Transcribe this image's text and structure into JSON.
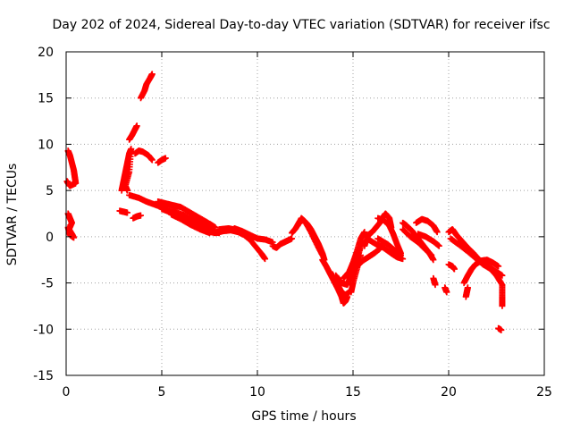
{
  "chart_data": {
    "type": "scatter",
    "title": "Day 202 of 2024, Sidereal Day-to-day VTEC variation (SDTVAR) for receiver ifsc",
    "xlabel": "GPS time / hours",
    "ylabel": "SDTVAR / TECUs",
    "xlim": [
      0,
      25
    ],
    "ylim": [
      -15,
      20
    ],
    "xticks": [
      0,
      5,
      10,
      15,
      20,
      25
    ],
    "yticks": [
      -15,
      -10,
      -5,
      0,
      5,
      10,
      15,
      20
    ],
    "grid": true,
    "marker": "+",
    "series": [
      {
        "name": "SDTVAR",
        "color": "#ff0000",
        "tracks": [
          [
            [
              0.1,
              9.3
            ],
            [
              0.2,
              8.8
            ],
            [
              0.3,
              8.0
            ],
            [
              0.4,
              7.2
            ],
            [
              0.45,
              6.5
            ],
            [
              0.5,
              5.8
            ],
            [
              0.4,
              5.7
            ],
            [
              0.2,
              5.5
            ],
            [
              0.1,
              5.8
            ],
            [
              0.05,
              6.0
            ]
          ],
          [
            [
              0.1,
              2.5
            ],
            [
              0.2,
              2.0
            ],
            [
              0.3,
              1.5
            ],
            [
              0.15,
              0.8
            ],
            [
              0.3,
              0.3
            ],
            [
              0.4,
              -0.1
            ],
            [
              0.2,
              0.2
            ],
            [
              0.1,
              1.0
            ]
          ],
          [
            [
              2.9,
              5.0
            ],
            [
              3.0,
              6.0
            ],
            [
              3.1,
              7.0
            ],
            [
              3.2,
              8.0
            ],
            [
              3.3,
              9.0
            ],
            [
              3.4,
              9.5
            ],
            [
              3.3,
              7.0
            ],
            [
              3.1,
              5.5
            ],
            [
              3.2,
              5.0
            ]
          ],
          [
            [
              3.3,
              10.5
            ],
            [
              3.45,
              11.0
            ],
            [
              3.6,
              11.6
            ],
            [
              3.7,
              12.0
            ]
          ],
          [
            [
              3.9,
              15.0
            ],
            [
              4.1,
              15.8
            ],
            [
              4.2,
              16.5
            ],
            [
              4.4,
              17.2
            ],
            [
              4.5,
              17.6
            ]
          ],
          [
            [
              3.6,
              9.0
            ],
            [
              3.8,
              9.3
            ],
            [
              4.0,
              9.2
            ],
            [
              4.3,
              8.8
            ],
            [
              4.5,
              8.3
            ]
          ],
          [
            [
              4.8,
              8.0
            ],
            [
              5.0,
              8.3
            ],
            [
              5.2,
              8.5
            ]
          ],
          [
            [
              2.8,
              2.8
            ],
            [
              3.0,
              2.7
            ],
            [
              3.2,
              2.6
            ]
          ],
          [
            [
              3.5,
              2.0
            ],
            [
              3.7,
              2.2
            ],
            [
              3.9,
              2.3
            ]
          ],
          [
            [
              3.3,
              4.5
            ],
            [
              3.8,
              4.2
            ],
            [
              4.2,
              3.8
            ],
            [
              4.6,
              3.5
            ],
            [
              5.0,
              3.2
            ],
            [
              5.6,
              2.8
            ],
            [
              6.2,
              2.3
            ],
            [
              6.8,
              1.8
            ],
            [
              7.3,
              1.2
            ],
            [
              7.5,
              0.8
            ]
          ],
          [
            [
              4.8,
              3.8
            ],
            [
              5.2,
              3.6
            ],
            [
              5.6,
              3.4
            ],
            [
              6.0,
              3.2
            ],
            [
              6.5,
              2.6
            ],
            [
              7.0,
              2.0
            ],
            [
              7.5,
              1.4
            ],
            [
              7.8,
              1.0
            ]
          ],
          [
            [
              5.0,
              3.0
            ],
            [
              5.5,
              2.6
            ],
            [
              6.0,
              2.0
            ],
            [
              6.5,
              1.6
            ],
            [
              7.0,
              1.1
            ],
            [
              7.5,
              0.6
            ],
            [
              8.0,
              0.4
            ]
          ],
          [
            [
              5.5,
              2.4
            ],
            [
              6.0,
              1.9
            ],
            [
              6.5,
              1.3
            ],
            [
              7.0,
              0.8
            ],
            [
              7.5,
              0.4
            ]
          ],
          [
            [
              7.3,
              0.6
            ],
            [
              7.8,
              0.4
            ],
            [
              8.2,
              0.6
            ],
            [
              8.6,
              0.7
            ],
            [
              9.0,
              0.5
            ],
            [
              9.3,
              0.2
            ],
            [
              9.6,
              -0.3
            ]
          ],
          [
            [
              8.0,
              0.8
            ],
            [
              8.5,
              0.9
            ],
            [
              9.0,
              0.7
            ],
            [
              9.4,
              0.3
            ],
            [
              9.8,
              -0.8
            ],
            [
              10.2,
              -1.8
            ],
            [
              10.4,
              -2.4
            ]
          ],
          [
            [
              8.8,
              0.9
            ],
            [
              9.2,
              0.6
            ],
            [
              9.6,
              0.2
            ],
            [
              10.0,
              -0.2
            ],
            [
              10.4,
              -0.3
            ],
            [
              10.8,
              -0.6
            ]
          ],
          [
            [
              10.8,
              -1.0
            ],
            [
              11.0,
              -1.2
            ],
            [
              11.2,
              -0.8
            ],
            [
              11.4,
              -0.6
            ],
            [
              11.6,
              -0.4
            ],
            [
              11.8,
              -0.2
            ]
          ],
          [
            [
              11.8,
              0.4
            ],
            [
              12.0,
              0.9
            ],
            [
              12.2,
              1.6
            ],
            [
              12.4,
              1.8
            ],
            [
              12.6,
              1.4
            ],
            [
              12.8,
              0.8
            ],
            [
              13.0,
              0.0
            ],
            [
              13.2,
              -0.8
            ],
            [
              13.4,
              -1.8
            ],
            [
              13.5,
              -2.5
            ]
          ],
          [
            [
              12.1,
              1.2
            ],
            [
              12.3,
              2.0
            ],
            [
              12.5,
              1.6
            ],
            [
              12.8,
              0.5
            ],
            [
              13.1,
              -0.8
            ],
            [
              13.4,
              -2.0
            ]
          ],
          [
            [
              13.4,
              -2.5
            ],
            [
              13.6,
              -3.2
            ],
            [
              13.8,
              -4.0
            ],
            [
              14.0,
              -4.8
            ],
            [
              14.2,
              -5.6
            ],
            [
              14.4,
              -6.5
            ],
            [
              14.5,
              -7.2
            ],
            [
              14.6,
              -7.0
            ],
            [
              14.7,
              -6.5
            ]
          ],
          [
            [
              13.8,
              -3.8
            ],
            [
              14.0,
              -4.5
            ],
            [
              14.2,
              -5.2
            ],
            [
              14.4,
              -6.0
            ],
            [
              14.6,
              -6.3
            ],
            [
              14.8,
              -6.0
            ]
          ],
          [
            [
              14.1,
              -4.2
            ],
            [
              14.4,
              -5.0
            ],
            [
              14.7,
              -5.2
            ],
            [
              14.9,
              -4.2
            ],
            [
              15.1,
              -3.2
            ],
            [
              15.3,
              -1.8
            ],
            [
              15.5,
              -0.4
            ]
          ],
          [
            [
              14.5,
              -4.5
            ],
            [
              14.8,
              -3.8
            ],
            [
              15.0,
              -2.8
            ],
            [
              15.2,
              -1.6
            ],
            [
              15.4,
              -0.2
            ],
            [
              15.6,
              0.5
            ]
          ],
          [
            [
              14.9,
              -6.0
            ],
            [
              15.0,
              -5.0
            ],
            [
              15.2,
              -3.5
            ],
            [
              15.4,
              -2.0
            ]
          ],
          [
            [
              15.3,
              -3.0
            ],
            [
              15.5,
              -2.6
            ],
            [
              15.8,
              -2.2
            ],
            [
              16.1,
              -1.8
            ],
            [
              16.4,
              -1.3
            ]
          ],
          [
            [
              15.6,
              -1.0
            ],
            [
              15.8,
              0.2
            ],
            [
              16.0,
              0.5
            ],
            [
              16.2,
              1.0
            ],
            [
              16.4,
              1.5
            ],
            [
              16.6,
              2.2
            ],
            [
              16.7,
              2.5
            ],
            [
              16.9,
              2.0
            ],
            [
              17.0,
              1.0
            ]
          ],
          [
            [
              15.8,
              -0.3
            ],
            [
              16.2,
              -0.8
            ],
            [
              16.6,
              -1.2
            ],
            [
              17.0,
              -1.8
            ],
            [
              17.3,
              -2.2
            ],
            [
              17.6,
              -2.4
            ]
          ],
          [
            [
              16.3,
              -0.2
            ],
            [
              16.8,
              -0.8
            ],
            [
              17.2,
              -1.5
            ],
            [
              17.5,
              -2.0
            ]
          ],
          [
            [
              16.3,
              2.0
            ],
            [
              16.6,
              1.8
            ],
            [
              16.9,
              1.2
            ],
            [
              17.1,
              0.3
            ],
            [
              17.3,
              -0.8
            ],
            [
              17.5,
              -1.8
            ]
          ],
          [
            [
              17.6,
              1.5
            ],
            [
              17.8,
              1.2
            ],
            [
              18.1,
              0.6
            ],
            [
              18.4,
              -0.2
            ],
            [
              18.7,
              -1.0
            ],
            [
              19.0,
              -1.8
            ],
            [
              19.2,
              -2.5
            ]
          ],
          [
            [
              17.6,
              0.8
            ],
            [
              18.0,
              0.0
            ],
            [
              18.4,
              -0.6
            ],
            [
              18.8,
              -1.4
            ],
            [
              19.1,
              -2.0
            ]
          ],
          [
            [
              18.3,
              1.5
            ],
            [
              18.6,
              1.9
            ],
            [
              18.9,
              1.7
            ],
            [
              19.2,
              1.2
            ],
            [
              19.4,
              0.5
            ]
          ],
          [
            [
              18.4,
              0.3
            ],
            [
              18.8,
              0.0
            ],
            [
              19.2,
              -0.5
            ],
            [
              19.5,
              -1.0
            ]
          ],
          [
            [
              19.2,
              -4.5
            ],
            [
              19.3,
              -5.2
            ]
          ],
          [
            [
              20.0,
              -3.0
            ],
            [
              20.2,
              -3.2
            ],
            [
              20.3,
              -3.5
            ]
          ],
          [
            [
              19.8,
              -5.5
            ],
            [
              19.9,
              -6.0
            ]
          ],
          [
            [
              20.0,
              0.5
            ],
            [
              20.2,
              0.8
            ],
            [
              20.4,
              0.2
            ],
            [
              20.7,
              -0.5
            ],
            [
              21.0,
              -1.2
            ],
            [
              21.3,
              -1.8
            ],
            [
              21.6,
              -2.5
            ],
            [
              21.9,
              -3.0
            ],
            [
              22.2,
              -3.4
            ],
            [
              22.5,
              -3.8
            ],
            [
              22.8,
              -4.2
            ]
          ],
          [
            [
              20.1,
              -0.2
            ],
            [
              20.5,
              -0.8
            ],
            [
              21.0,
              -1.6
            ],
            [
              21.4,
              -2.3
            ],
            [
              21.8,
              -3.0
            ],
            [
              22.2,
              -3.5
            ],
            [
              22.5,
              -4.2
            ],
            [
              22.8,
              -5.2
            ],
            [
              22.8,
              -6.5
            ],
            [
              22.8,
              -7.5
            ]
          ],
          [
            [
              20.8,
              -5.0
            ],
            [
              21.0,
              -4.2
            ],
            [
              21.2,
              -3.5
            ],
            [
              21.4,
              -3.0
            ],
            [
              21.7,
              -2.6
            ],
            [
              22.0,
              -2.5
            ],
            [
              22.3,
              -2.8
            ],
            [
              22.6,
              -3.2
            ]
          ],
          [
            [
              20.9,
              -6.5
            ],
            [
              20.95,
              -6.0
            ],
            [
              21.0,
              -5.5
            ]
          ],
          [
            [
              22.6,
              -9.9
            ],
            [
              22.75,
              -10.1
            ]
          ]
        ]
      }
    ]
  }
}
